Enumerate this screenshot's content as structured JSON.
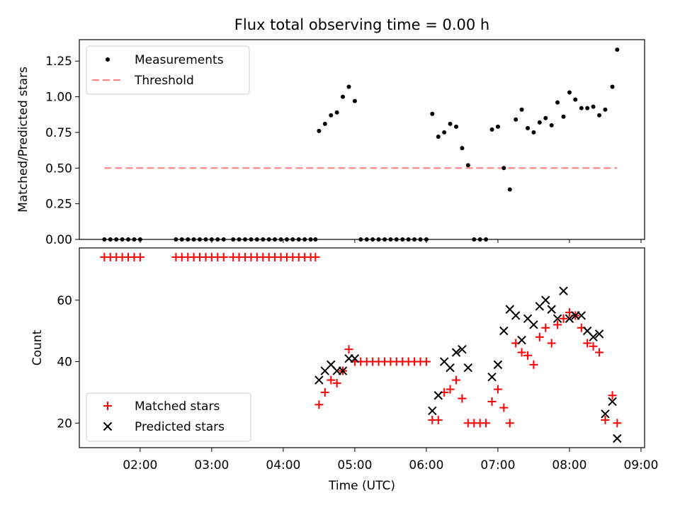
{
  "chart_data": [
    {
      "type": "scatter",
      "title": "Flux total observing time = 0.00 h",
      "xlabel": "",
      "ylabel": "Matched/Predicted stars",
      "ylim": [
        0,
        1.4
      ],
      "yticks": [
        "0.00",
        "0.25",
        "0.50",
        "0.75",
        "1.00",
        "1.25"
      ],
      "legend_position": "upper-left",
      "series": [
        {
          "name": "Measurements",
          "marker": "dot",
          "color": "#000000",
          "points": [
            [
              1.5,
              0
            ],
            [
              1.583,
              0
            ],
            [
              1.667,
              0
            ],
            [
              1.75,
              0
            ],
            [
              1.833,
              0
            ],
            [
              1.917,
              0
            ],
            [
              2.0,
              0
            ],
            [
              2.5,
              0
            ],
            [
              2.583,
              0
            ],
            [
              2.667,
              0
            ],
            [
              2.75,
              0
            ],
            [
              2.833,
              0
            ],
            [
              2.917,
              0
            ],
            [
              3.0,
              0
            ],
            [
              3.083,
              0
            ],
            [
              3.167,
              0
            ],
            [
              3.3,
              0
            ],
            [
              3.383,
              0
            ],
            [
              3.467,
              0
            ],
            [
              3.55,
              0
            ],
            [
              3.633,
              0
            ],
            [
              3.717,
              0
            ],
            [
              3.8,
              0
            ],
            [
              3.883,
              0
            ],
            [
              3.967,
              0
            ],
            [
              4.05,
              0
            ],
            [
              4.133,
              0
            ],
            [
              4.217,
              0
            ],
            [
              4.3,
              0
            ],
            [
              4.383,
              0
            ],
            [
              4.45,
              0
            ],
            [
              4.5,
              0.76
            ],
            [
              4.583,
              0.81
            ],
            [
              4.667,
              0.87
            ],
            [
              4.75,
              0.89
            ],
            [
              4.833,
              1.0
            ],
            [
              4.917,
              1.07
            ],
            [
              5.0,
              0.97
            ],
            [
              5.083,
              0
            ],
            [
              5.167,
              0
            ],
            [
              5.25,
              0
            ],
            [
              5.333,
              0
            ],
            [
              5.417,
              0
            ],
            [
              5.5,
              0
            ],
            [
              5.583,
              0
            ],
            [
              5.667,
              0
            ],
            [
              5.75,
              0
            ],
            [
              5.833,
              0
            ],
            [
              5.917,
              0
            ],
            [
              6.0,
              0
            ],
            [
              6.083,
              0.88
            ],
            [
              6.167,
              0.72
            ],
            [
              6.25,
              0.75
            ],
            [
              6.333,
              0.81
            ],
            [
              6.417,
              0.79
            ],
            [
              6.5,
              0.64
            ],
            [
              6.583,
              0.52
            ],
            [
              6.667,
              0
            ],
            [
              6.75,
              0
            ],
            [
              6.833,
              0
            ],
            [
              6.917,
              0.77
            ],
            [
              7.0,
              0.79
            ],
            [
              7.083,
              0.5
            ],
            [
              7.167,
              0.35
            ],
            [
              7.25,
              0.84
            ],
            [
              7.333,
              0.91
            ],
            [
              7.417,
              0.78
            ],
            [
              7.5,
              0.75
            ],
            [
              7.583,
              0.82
            ],
            [
              7.667,
              0.85
            ],
            [
              7.75,
              0.8
            ],
            [
              7.833,
              0.96
            ],
            [
              7.917,
              0.86
            ],
            [
              8.0,
              1.03
            ],
            [
              8.083,
              0.98
            ],
            [
              8.167,
              0.92
            ],
            [
              8.25,
              0.92
            ],
            [
              8.333,
              0.93
            ],
            [
              8.417,
              0.87
            ],
            [
              8.5,
              0.91
            ],
            [
              8.6,
              1.07
            ],
            [
              8.667,
              1.33
            ]
          ]
        },
        {
          "name": "Threshold",
          "marker": "dashed-line",
          "color": "#ff7f7f",
          "points": [
            [
              1.5,
              0.5
            ],
            [
              8.667,
              0.5
            ]
          ]
        }
      ]
    },
    {
      "type": "scatter",
      "title": "",
      "xlabel": "Time (UTC)",
      "ylabel": "Count",
      "ylim": [
        12,
        77
      ],
      "yticks": [
        "20",
        "40",
        "60"
      ],
      "xlim": [
        1.15,
        9.05
      ],
      "xticks": [
        "02:00",
        "03:00",
        "04:00",
        "05:00",
        "06:00",
        "07:00",
        "08:00",
        "09:00"
      ],
      "legend_position": "lower-left",
      "series": [
        {
          "name": "Matched stars",
          "marker": "plus",
          "color": "#ff0000",
          "points": [
            [
              1.5,
              74
            ],
            [
              1.583,
              74
            ],
            [
              1.667,
              74
            ],
            [
              1.75,
              74
            ],
            [
              1.833,
              74
            ],
            [
              1.917,
              74
            ],
            [
              2.0,
              74
            ],
            [
              2.5,
              74
            ],
            [
              2.583,
              74
            ],
            [
              2.667,
              74
            ],
            [
              2.75,
              74
            ],
            [
              2.833,
              74
            ],
            [
              2.917,
              74
            ],
            [
              3.0,
              74
            ],
            [
              3.083,
              74
            ],
            [
              3.167,
              74
            ],
            [
              3.3,
              74
            ],
            [
              3.383,
              74
            ],
            [
              3.467,
              74
            ],
            [
              3.55,
              74
            ],
            [
              3.633,
              74
            ],
            [
              3.717,
              74
            ],
            [
              3.8,
              74
            ],
            [
              3.883,
              74
            ],
            [
              3.967,
              74
            ],
            [
              4.05,
              74
            ],
            [
              4.133,
              74
            ],
            [
              4.217,
              74
            ],
            [
              4.3,
              74
            ],
            [
              4.383,
              74
            ],
            [
              4.45,
              74
            ],
            [
              4.5,
              26
            ],
            [
              4.583,
              30
            ],
            [
              4.667,
              34
            ],
            [
              4.75,
              33
            ],
            [
              4.833,
              37
            ],
            [
              4.917,
              44
            ],
            [
              5.0,
              40
            ],
            [
              5.083,
              40
            ],
            [
              5.167,
              40
            ],
            [
              5.25,
              40
            ],
            [
              5.333,
              40
            ],
            [
              5.417,
              40
            ],
            [
              5.5,
              40
            ],
            [
              5.583,
              40
            ],
            [
              5.667,
              40
            ],
            [
              5.75,
              40
            ],
            [
              5.833,
              40
            ],
            [
              5.917,
              40
            ],
            [
              6.0,
              40
            ],
            [
              6.083,
              21
            ],
            [
              6.167,
              21
            ],
            [
              6.25,
              30
            ],
            [
              6.333,
              31
            ],
            [
              6.417,
              34
            ],
            [
              6.5,
              28
            ],
            [
              6.583,
              20
            ],
            [
              6.667,
              20
            ],
            [
              6.75,
              20
            ],
            [
              6.833,
              20
            ],
            [
              6.917,
              27
            ],
            [
              7.0,
              31
            ],
            [
              7.083,
              25
            ],
            [
              7.167,
              20
            ],
            [
              7.25,
              46
            ],
            [
              7.333,
              43
            ],
            [
              7.417,
              42
            ],
            [
              7.5,
              39
            ],
            [
              7.583,
              48
            ],
            [
              7.667,
              51
            ],
            [
              7.75,
              46
            ],
            [
              7.833,
              52
            ],
            [
              7.917,
              54
            ],
            [
              8.0,
              56
            ],
            [
              8.083,
              55
            ],
            [
              8.167,
              51
            ],
            [
              8.25,
              46
            ],
            [
              8.333,
              45
            ],
            [
              8.417,
              43
            ],
            [
              8.5,
              21
            ],
            [
              8.6,
              29
            ],
            [
              8.667,
              20
            ]
          ]
        },
        {
          "name": "Predicted stars",
          "marker": "x",
          "color": "#000000",
          "points": [
            [
              4.5,
              34
            ],
            [
              4.583,
              37
            ],
            [
              4.667,
              39
            ],
            [
              4.75,
              37
            ],
            [
              4.833,
              37
            ],
            [
              4.917,
              41
            ],
            [
              5.0,
              41
            ],
            [
              6.083,
              24
            ],
            [
              6.167,
              29
            ],
            [
              6.25,
              40
            ],
            [
              6.333,
              38
            ],
            [
              6.417,
              43
            ],
            [
              6.5,
              44
            ],
            [
              6.583,
              38
            ],
            [
              6.917,
              35
            ],
            [
              7.0,
              39
            ],
            [
              7.083,
              50
            ],
            [
              7.167,
              57
            ],
            [
              7.25,
              55
            ],
            [
              7.333,
              47
            ],
            [
              7.417,
              54
            ],
            [
              7.5,
              52
            ],
            [
              7.583,
              58
            ],
            [
              7.667,
              60
            ],
            [
              7.75,
              57
            ],
            [
              7.833,
              54
            ],
            [
              7.917,
              63
            ],
            [
              8.0,
              54
            ],
            [
              8.083,
              55
            ],
            [
              8.167,
              55
            ],
            [
              8.25,
              50
            ],
            [
              8.333,
              48
            ],
            [
              8.417,
              49
            ],
            [
              8.5,
              23
            ],
            [
              8.6,
              27
            ],
            [
              8.667,
              15
            ]
          ]
        }
      ]
    }
  ]
}
